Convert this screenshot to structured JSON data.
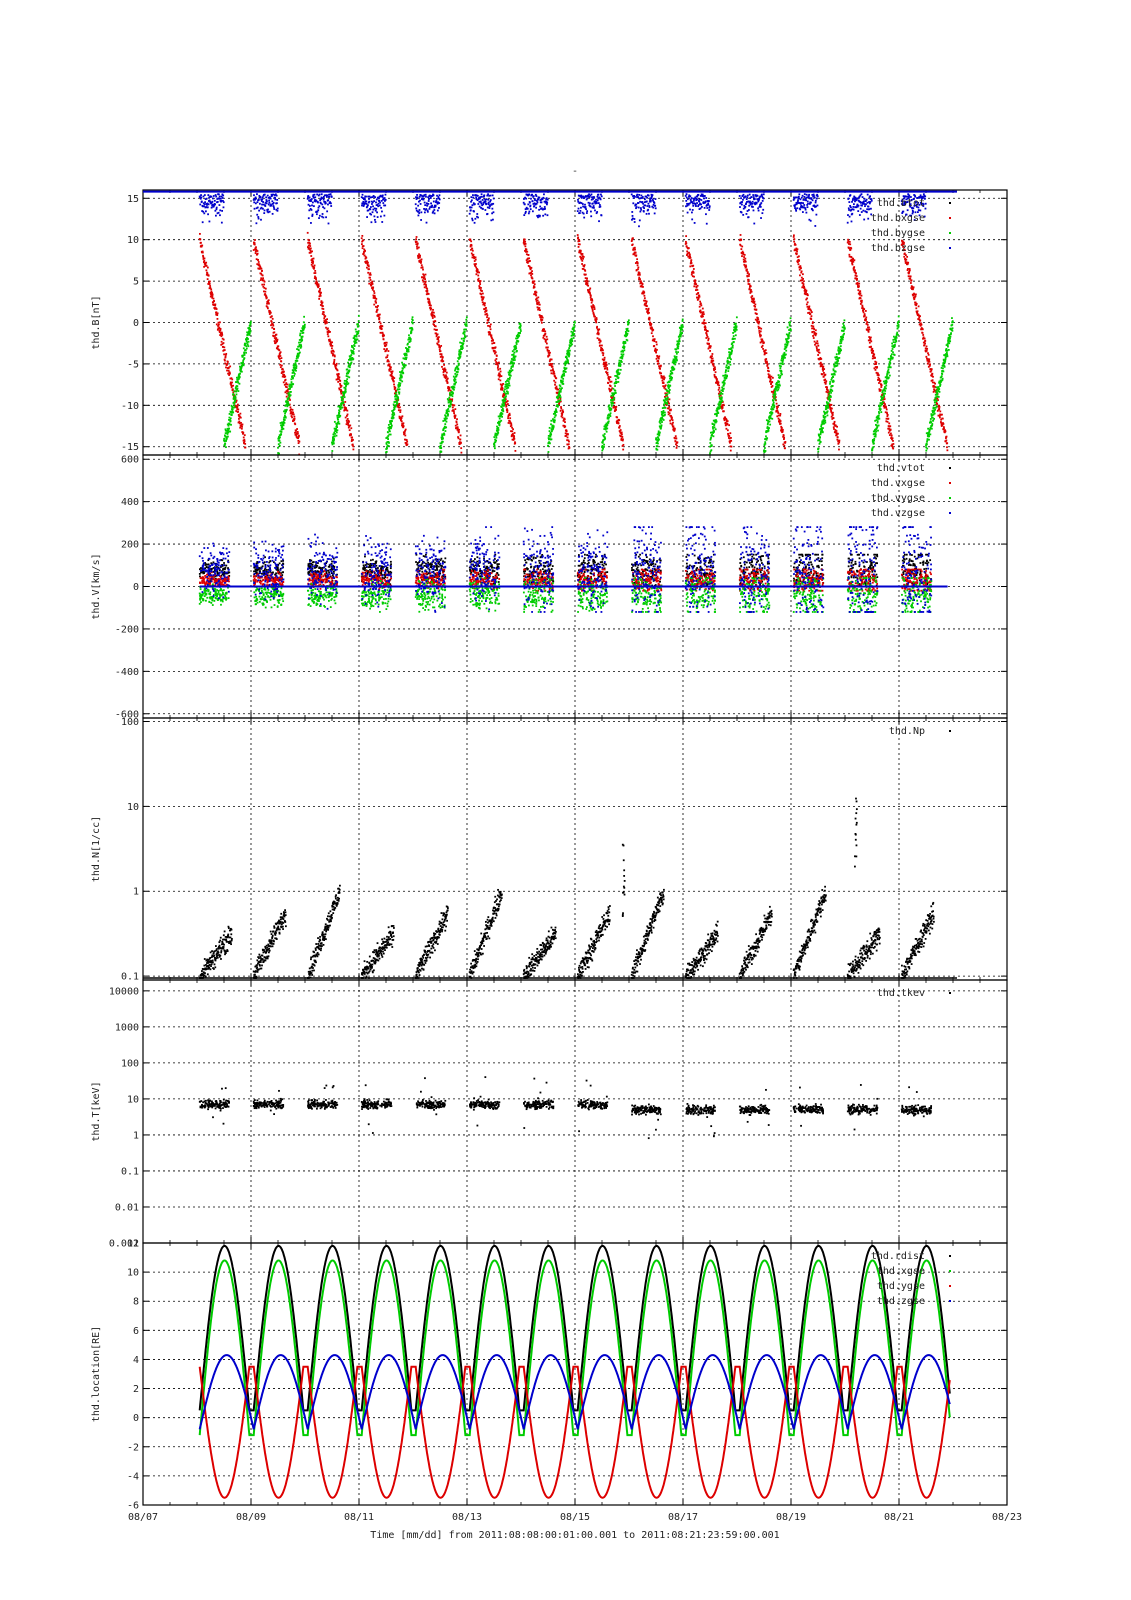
{
  "page": {
    "title": "-"
  },
  "colors": {
    "black": "#000000",
    "red": "#dd0000",
    "green": "#00cc00",
    "blue": "#0000cc",
    "grid": "#000000"
  },
  "x_axis": {
    "start_day": 7,
    "end_day": 23,
    "ticks": [
      {
        "day": 7,
        "label": "08/07"
      },
      {
        "day": 9,
        "label": "08/09"
      },
      {
        "day": 11,
        "label": "08/11"
      },
      {
        "day": 13,
        "label": "08/13"
      },
      {
        "day": 15,
        "label": "08/15"
      },
      {
        "day": 17,
        "label": "08/17"
      },
      {
        "day": 19,
        "label": "08/19"
      },
      {
        "day": 21,
        "label": "08/21"
      },
      {
        "day": 23,
        "label": "08/23"
      }
    ],
    "caption": "Time [mm/dd]  from 2011:08:08:00:01:00.001  to  2011:08:21:23:59:00.001"
  },
  "chart_data": [
    {
      "type": "scatter",
      "ylabel": "thd.B[nT]",
      "scale": "linear",
      "ylim": [
        -16,
        16
      ],
      "yticks": [
        {
          "v": 15,
          "t": "15"
        },
        {
          "v": 10,
          "t": "10"
        },
        {
          "v": 5,
          "t": "5"
        },
        {
          "v": 0,
          "t": "0"
        },
        {
          "v": -5,
          "t": "-5"
        },
        {
          "v": -10,
          "t": "-10"
        },
        {
          "v": -15,
          "t": "-15"
        }
      ],
      "legend": [
        "thd.btot",
        "thd.bxgse",
        "thd.bygse",
        "thd.bzgse"
      ],
      "legend_colors": [
        "#000000",
        "#dd0000",
        "#00cc00",
        "#0000cc"
      ],
      "series": [
        {
          "name": "thd.btot",
          "color": "#000000",
          "values": []
        },
        {
          "name": "thd.bxgse",
          "color": "#dd0000",
          "pattern": "orbital sawtooth, peak ~10 to ~-15 each ~1.07 day"
        },
        {
          "name": "thd.bygse",
          "color": "#00cc00",
          "pattern": "rises from -15 to ~0 each orbit"
        },
        {
          "name": "thd.bzgse",
          "color": "#0000cc",
          "pattern": "saturated near +15 during first half"
        }
      ]
    },
    {
      "type": "scatter",
      "ylabel": "thd.V[km/s]",
      "scale": "linear",
      "ylim": [
        -620,
        620
      ],
      "yticks": [
        {
          "v": 600,
          "t": "600"
        },
        {
          "v": 400,
          "t": "400"
        },
        {
          "v": 200,
          "t": "200"
        },
        {
          "v": 0,
          "t": "0"
        },
        {
          "v": -200,
          "t": "-200"
        },
        {
          "v": -400,
          "t": "-400"
        },
        {
          "v": -600,
          "t": "-600"
        }
      ],
      "legend": [
        "thd.vtot",
        "thd.vxgse",
        "thd.vygse",
        "thd.vzgse"
      ],
      "legend_colors": [
        "#000000",
        "#dd0000",
        "#00cc00",
        "#0000cc"
      ],
      "series": [
        {
          "name": "thd.vtot",
          "color": "#000000",
          "range": [
            0,
            150
          ]
        },
        {
          "name": "thd.vxgse",
          "color": "#dd0000",
          "range": [
            -20,
            80
          ]
        },
        {
          "name": "thd.vygse",
          "color": "#00cc00",
          "range": [
            -120,
            40
          ]
        },
        {
          "name": "thd.vzgse",
          "color": "#0000cc",
          "range": [
            -120,
            280
          ]
        }
      ]
    },
    {
      "type": "scatter",
      "ylabel": "thd.N[1/cc]",
      "scale": "log",
      "ylim": [
        0.09,
        110
      ],
      "yticks": [
        {
          "v": 100,
          "t": "100"
        },
        {
          "v": 10,
          "t": "10"
        },
        {
          "v": 1,
          "t": "1"
        },
        {
          "v": 0.1,
          "t": "0.1"
        }
      ],
      "legend": [
        "thd.Np"
      ],
      "legend_colors": [
        "#000000"
      ],
      "series": [
        {
          "name": "thd.Np",
          "color": "#000000",
          "range": [
            0.1,
            1.2
          ],
          "spikes": [
            {
              "day": 15.9,
              "value": 4
            },
            {
              "day": 20.2,
              "value": 14
            }
          ]
        }
      ]
    },
    {
      "type": "scatter",
      "ylabel": "thd.T[keV]",
      "scale": "log",
      "ylim": [
        0.001,
        20000
      ],
      "yticks": [
        {
          "v": 10000,
          "t": "10000"
        },
        {
          "v": 1000,
          "t": "1000"
        },
        {
          "v": 100,
          "t": "100"
        },
        {
          "v": 10,
          "t": "10"
        },
        {
          "v": 1,
          "t": "1"
        },
        {
          "v": 0.1,
          "t": "0.1"
        },
        {
          "v": 0.01,
          "t": "0.01"
        },
        {
          "v": 0.001,
          "t": "0.001"
        }
      ],
      "legend": [
        "thd.tkev"
      ],
      "legend_colors": [
        "#000000"
      ],
      "series": [
        {
          "name": "thd.tkev",
          "color": "#000000",
          "range": [
            3,
            10
          ]
        }
      ]
    },
    {
      "type": "line",
      "ylabel": "thd.location[RE]",
      "scale": "linear",
      "ylim": [
        -6,
        12
      ],
      "yticks": [
        {
          "v": 12,
          "t": "12"
        },
        {
          "v": 10,
          "t": "10"
        },
        {
          "v": 8,
          "t": "8"
        },
        {
          "v": 6,
          "t": "6"
        },
        {
          "v": 4,
          "t": "4"
        },
        {
          "v": 2,
          "t": "2"
        },
        {
          "v": 0,
          "t": "0"
        },
        {
          "v": -2,
          "t": "-2"
        },
        {
          "v": -4,
          "t": "-4"
        },
        {
          "v": -6,
          "t": "-6"
        }
      ],
      "legend": [
        "thd.rdist",
        "thd.xgse",
        "thd.ygse",
        "thd.zgse"
      ],
      "legend_colors": [
        "#000000",
        "#00cc00",
        "#dd0000",
        "#0000cc"
      ],
      "series": [
        {
          "name": "thd.rdist",
          "color": "#000000",
          "max": 11.8
        },
        {
          "name": "thd.xgse",
          "color": "#00cc00",
          "max": 10.8
        },
        {
          "name": "thd.ygse",
          "color": "#dd0000",
          "min": -5.5,
          "max": 3.5
        },
        {
          "name": "thd.zgse",
          "color": "#0000cc",
          "min": -0.8,
          "max": 4.3
        }
      ]
    }
  ]
}
